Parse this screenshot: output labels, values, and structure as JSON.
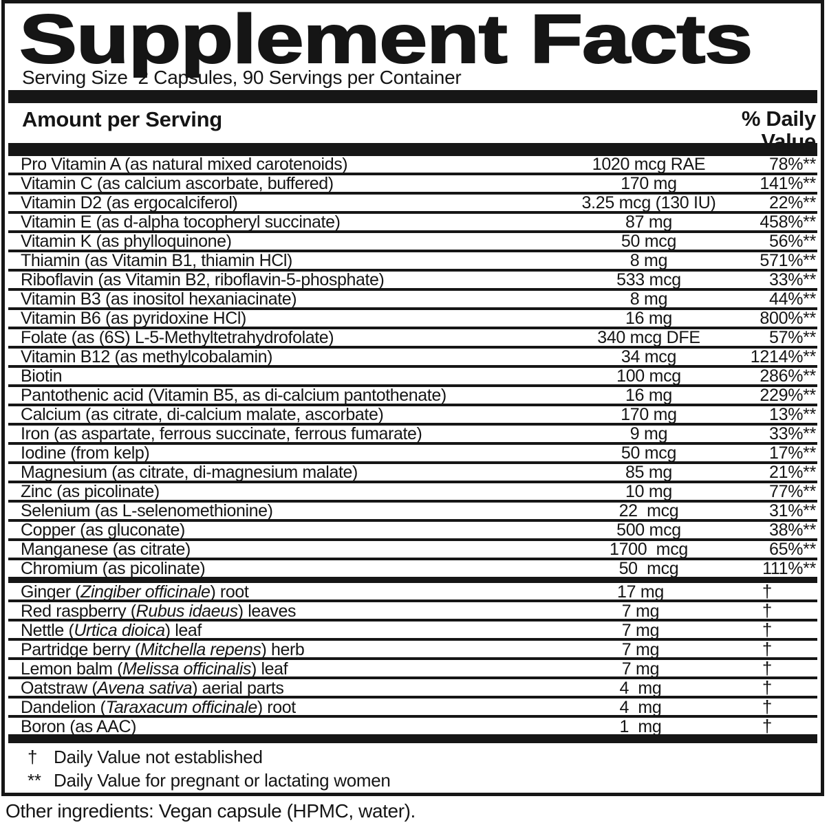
{
  "title": "Supplement Facts",
  "serving_line": "Serving Size  2 Capsules, 90 Servings per Container",
  "header": {
    "amount_label": "Amount per Serving",
    "dv_line1": "% Daily",
    "dv_line2": "Value"
  },
  "rows": [
    {
      "name_pre": "Pro Vitamin A (as natural mixed carotenoids)",
      "name_italic": "",
      "name_post": "",
      "amount": "1020 mcg RAE",
      "dv": "78%**"
    },
    {
      "name_pre": "Vitamin C (as calcium ascorbate, buffered)",
      "name_italic": "",
      "name_post": "",
      "amount": "170 mg",
      "dv": "141%**"
    },
    {
      "name_pre": "Vitamin D2 (as ergocalciferol)",
      "name_italic": "",
      "name_post": "",
      "amount": "3.25 mcg (130 IU)",
      "dv": "22%**"
    },
    {
      "name_pre": "Vitamin E (as d-alpha tocopheryl succinate)",
      "name_italic": "",
      "name_post": "",
      "amount": "87 mg",
      "dv": "458%**"
    },
    {
      "name_pre": "Vitamin K (as phylloquinone)",
      "name_italic": "",
      "name_post": "",
      "amount": "50 mcg",
      "dv": "56%**"
    },
    {
      "name_pre": "Thiamin (as Vitamin B1, thiamin HCl)",
      "name_italic": "",
      "name_post": "",
      "amount": "8 mg",
      "dv": "571%**"
    },
    {
      "name_pre": "Riboflavin (as Vitamin B2, riboflavin-5-phosphate)",
      "name_italic": "",
      "name_post": "",
      "amount": "533 mcg",
      "dv": "33%**"
    },
    {
      "name_pre": "Vitamin B3 (as inositol hexaniacinate)",
      "name_italic": "",
      "name_post": "",
      "amount": "8 mg",
      "dv": "44%**"
    },
    {
      "name_pre": "Vitamin B6 (as pyridoxine HCl)",
      "name_italic": "",
      "name_post": "",
      "amount": "16 mg",
      "dv": "800%**"
    },
    {
      "name_pre": "Folate (as (6S) L-5-Methyltetrahydrofolate)",
      "name_italic": "",
      "name_post": "",
      "amount": "340 mcg DFE",
      "dv": "57%**"
    },
    {
      "name_pre": "Vitamin B12 (as methylcobalamin)",
      "name_italic": "",
      "name_post": "",
      "amount": "34 mcg",
      "dv": "1214%**"
    },
    {
      "name_pre": "Biotin",
      "name_italic": "",
      "name_post": "",
      "amount": "100 mcg",
      "dv": "286%**"
    },
    {
      "name_pre": "Pantothenic acid (Vitamin B5, as di-calcium pantothenate)",
      "name_italic": "",
      "name_post": "",
      "amount": "16 mg",
      "dv": "229%**"
    },
    {
      "name_pre": "Calcium (as citrate, di-calcium malate, ascorbate)",
      "name_italic": "",
      "name_post": "",
      "amount": "170 mg",
      "dv": "13%**"
    },
    {
      "name_pre": "Iron (as aspartate, ferrous succinate, ferrous fumarate)",
      "name_italic": "",
      "name_post": "",
      "amount": "9 mg",
      "dv": "33%**"
    },
    {
      "name_pre": "Iodine (from kelp)",
      "name_italic": "",
      "name_post": "",
      "amount": "50 mcg",
      "dv": "17%**"
    },
    {
      "name_pre": "Magnesium (as citrate, di-magnesium malate)",
      "name_italic": "",
      "name_post": "",
      "amount": "85 mg",
      "dv": "21%**"
    },
    {
      "name_pre": "Zinc (as picolinate)",
      "name_italic": "",
      "name_post": "",
      "amount": "10 mg",
      "dv": "77%**"
    },
    {
      "name_pre": "Selenium (as L-selenomethionine)",
      "name_italic": "",
      "name_post": "",
      "amount": "22  mcg",
      "dv": "31%**"
    },
    {
      "name_pre": "Copper (as gluconate)",
      "name_italic": "",
      "name_post": "",
      "amount": "500 mcg",
      "dv": "38%**"
    },
    {
      "name_pre": "Manganese (as citrate)",
      "name_italic": "",
      "name_post": "",
      "amount": "1700  mcg",
      "dv": "65%**"
    },
    {
      "name_pre": "Chromium (as picolinate)",
      "name_italic": "",
      "name_post": "",
      "amount": "50  mcg",
      "dv": "111%**"
    },
    {
      "name_pre": "Ginger (",
      "name_italic": "Zingiber officinale",
      "name_post": ") root",
      "amount": "17 mg",
      "dv": "†",
      "sep": "thick"
    },
    {
      "name_pre": "Red raspberry (",
      "name_italic": "Rubus idaeus",
      "name_post": ") leaves",
      "amount": "7 mg",
      "dv": "†"
    },
    {
      "name_pre": "Nettle (",
      "name_italic": "Urtica dioica",
      "name_post": ") leaf",
      "amount": "7 mg",
      "dv": "†"
    },
    {
      "name_pre": "Partridge berry (",
      "name_italic": "Mitchella repens",
      "name_post": ") herb",
      "amount": "7 mg",
      "dv": "†"
    },
    {
      "name_pre": "Lemon balm (",
      "name_italic": "Melissa officinalis",
      "name_post": ") leaf",
      "amount": "7 mg",
      "dv": "†"
    },
    {
      "name_pre": "Oatstraw (",
      "name_italic": "Avena sativa",
      "name_post": ") aerial parts",
      "amount": "4  mg",
      "dv": "†"
    },
    {
      "name_pre": "Dandelion (",
      "name_italic": "Taraxacum officinale",
      "name_post": ") root",
      "amount": "4  mg",
      "dv": "†"
    },
    {
      "name_pre": "Boron (as AAC)",
      "name_italic": "",
      "name_post": "",
      "amount": "1  mg",
      "dv": "†"
    }
  ],
  "footnotes": [
    {
      "symbol": "†",
      "text": "Daily Value not established"
    },
    {
      "symbol": "**",
      "text": "Daily Value for pregnant or lactating women"
    }
  ],
  "other_ingredients": "Other ingredients: Vegan capsule (HPMC, water).",
  "colors": {
    "ink": "#151515",
    "background": "#ffffff"
  }
}
